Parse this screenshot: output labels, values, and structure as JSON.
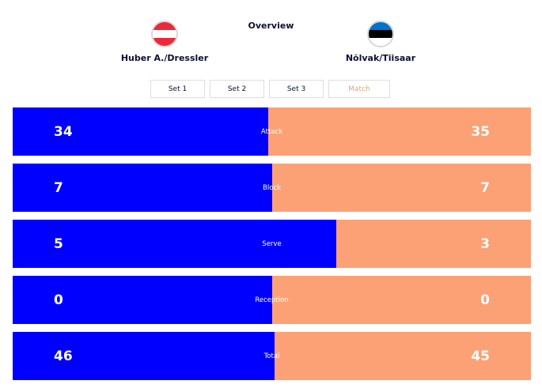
{
  "header": {
    "title": "Overview",
    "team_left": {
      "name": "Huber A./Dressler",
      "flag_icon": "flag-austria-icon",
      "flag_colors": [
        "#ed2939",
        "#ffffff",
        "#ed2939"
      ]
    },
    "team_right": {
      "name": "Nõlvak/Tiisaar",
      "flag_icon": "flag-estonia-icon",
      "flag_colors": [
        "#0072ce",
        "#000000",
        "#ffffff"
      ]
    }
  },
  "tabs": [
    {
      "label": "Set 1",
      "active": false
    },
    {
      "label": "Set 2",
      "active": false
    },
    {
      "label": "Set 3",
      "active": false
    },
    {
      "label": "Match",
      "active": true
    }
  ],
  "colors": {
    "left_team": "#0000ff",
    "right_team": "#fca175",
    "active_tab": "#f0a070"
  },
  "stats": [
    {
      "label": "Attack",
      "left": "34",
      "right": "35"
    },
    {
      "label": "Block",
      "left": "7",
      "right": "7"
    },
    {
      "label": "Serve",
      "left": "5",
      "right": "3"
    },
    {
      "label": "Reception",
      "left": "0",
      "right": "0"
    },
    {
      "label": "Total",
      "left": "46",
      "right": "45"
    }
  ]
}
